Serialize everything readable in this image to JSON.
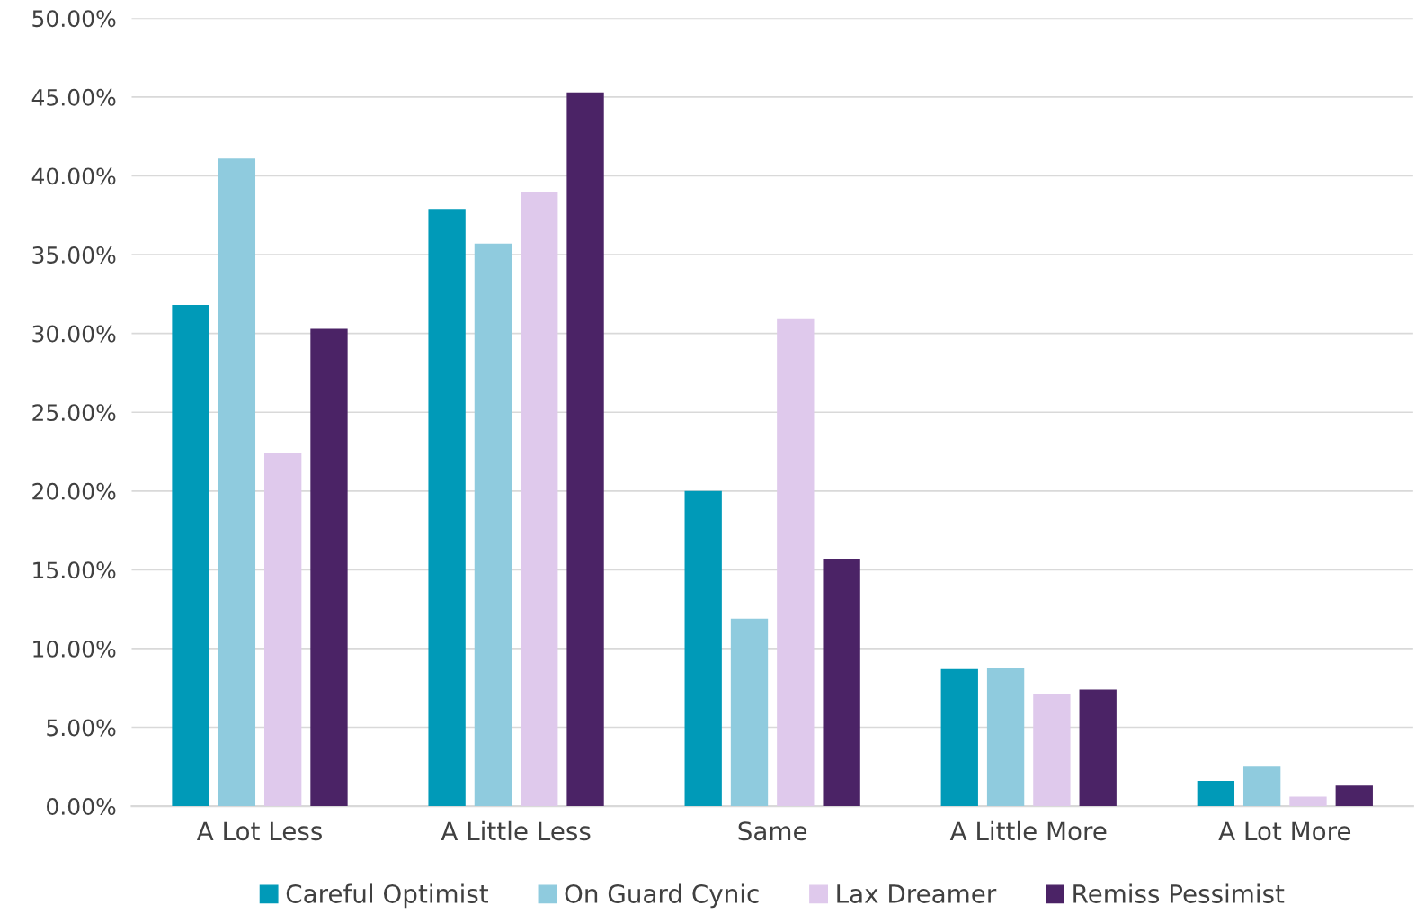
{
  "chart_data": {
    "type": "bar",
    "categories": [
      "A Lot Less",
      "A Little Less",
      "Same",
      "A Little More",
      "A Lot More"
    ],
    "series": [
      {
        "name": "Careful Optimist",
        "color": "#009ab8",
        "values": [
          31.8,
          37.9,
          20.0,
          8.7,
          1.6
        ]
      },
      {
        "name": "On Guard Cynic",
        "color": "#8fcbde",
        "values": [
          41.1,
          35.7,
          11.9,
          8.8,
          2.5
        ]
      },
      {
        "name": "Lax Dreamer",
        "color": "#dfc9ec",
        "values": [
          22.4,
          39.0,
          30.9,
          7.1,
          0.6
        ]
      },
      {
        "name": "Remiss Pessimist",
        "color": "#4b2366",
        "values": [
          30.3,
          45.3,
          15.7,
          7.4,
          1.3
        ]
      }
    ],
    "ylim": [
      0,
      50
    ],
    "yticks": [
      {
        "value": 0,
        "label": "0.00%"
      },
      {
        "value": 5,
        "label": "5.00%"
      },
      {
        "value": 10,
        "label": "10.00%"
      },
      {
        "value": 15,
        "label": "15.00%"
      },
      {
        "value": 20,
        "label": "20.00%"
      },
      {
        "value": 25,
        "label": "25.00%"
      },
      {
        "value": 30,
        "label": "30.00%"
      },
      {
        "value": 35,
        "label": "35.00%"
      },
      {
        "value": 40,
        "label": "40.00%"
      },
      {
        "value": 45,
        "label": "45.00%"
      },
      {
        "value": 50,
        "label": "50.00%"
      }
    ],
    "grid": "y",
    "legend": "bottom"
  }
}
